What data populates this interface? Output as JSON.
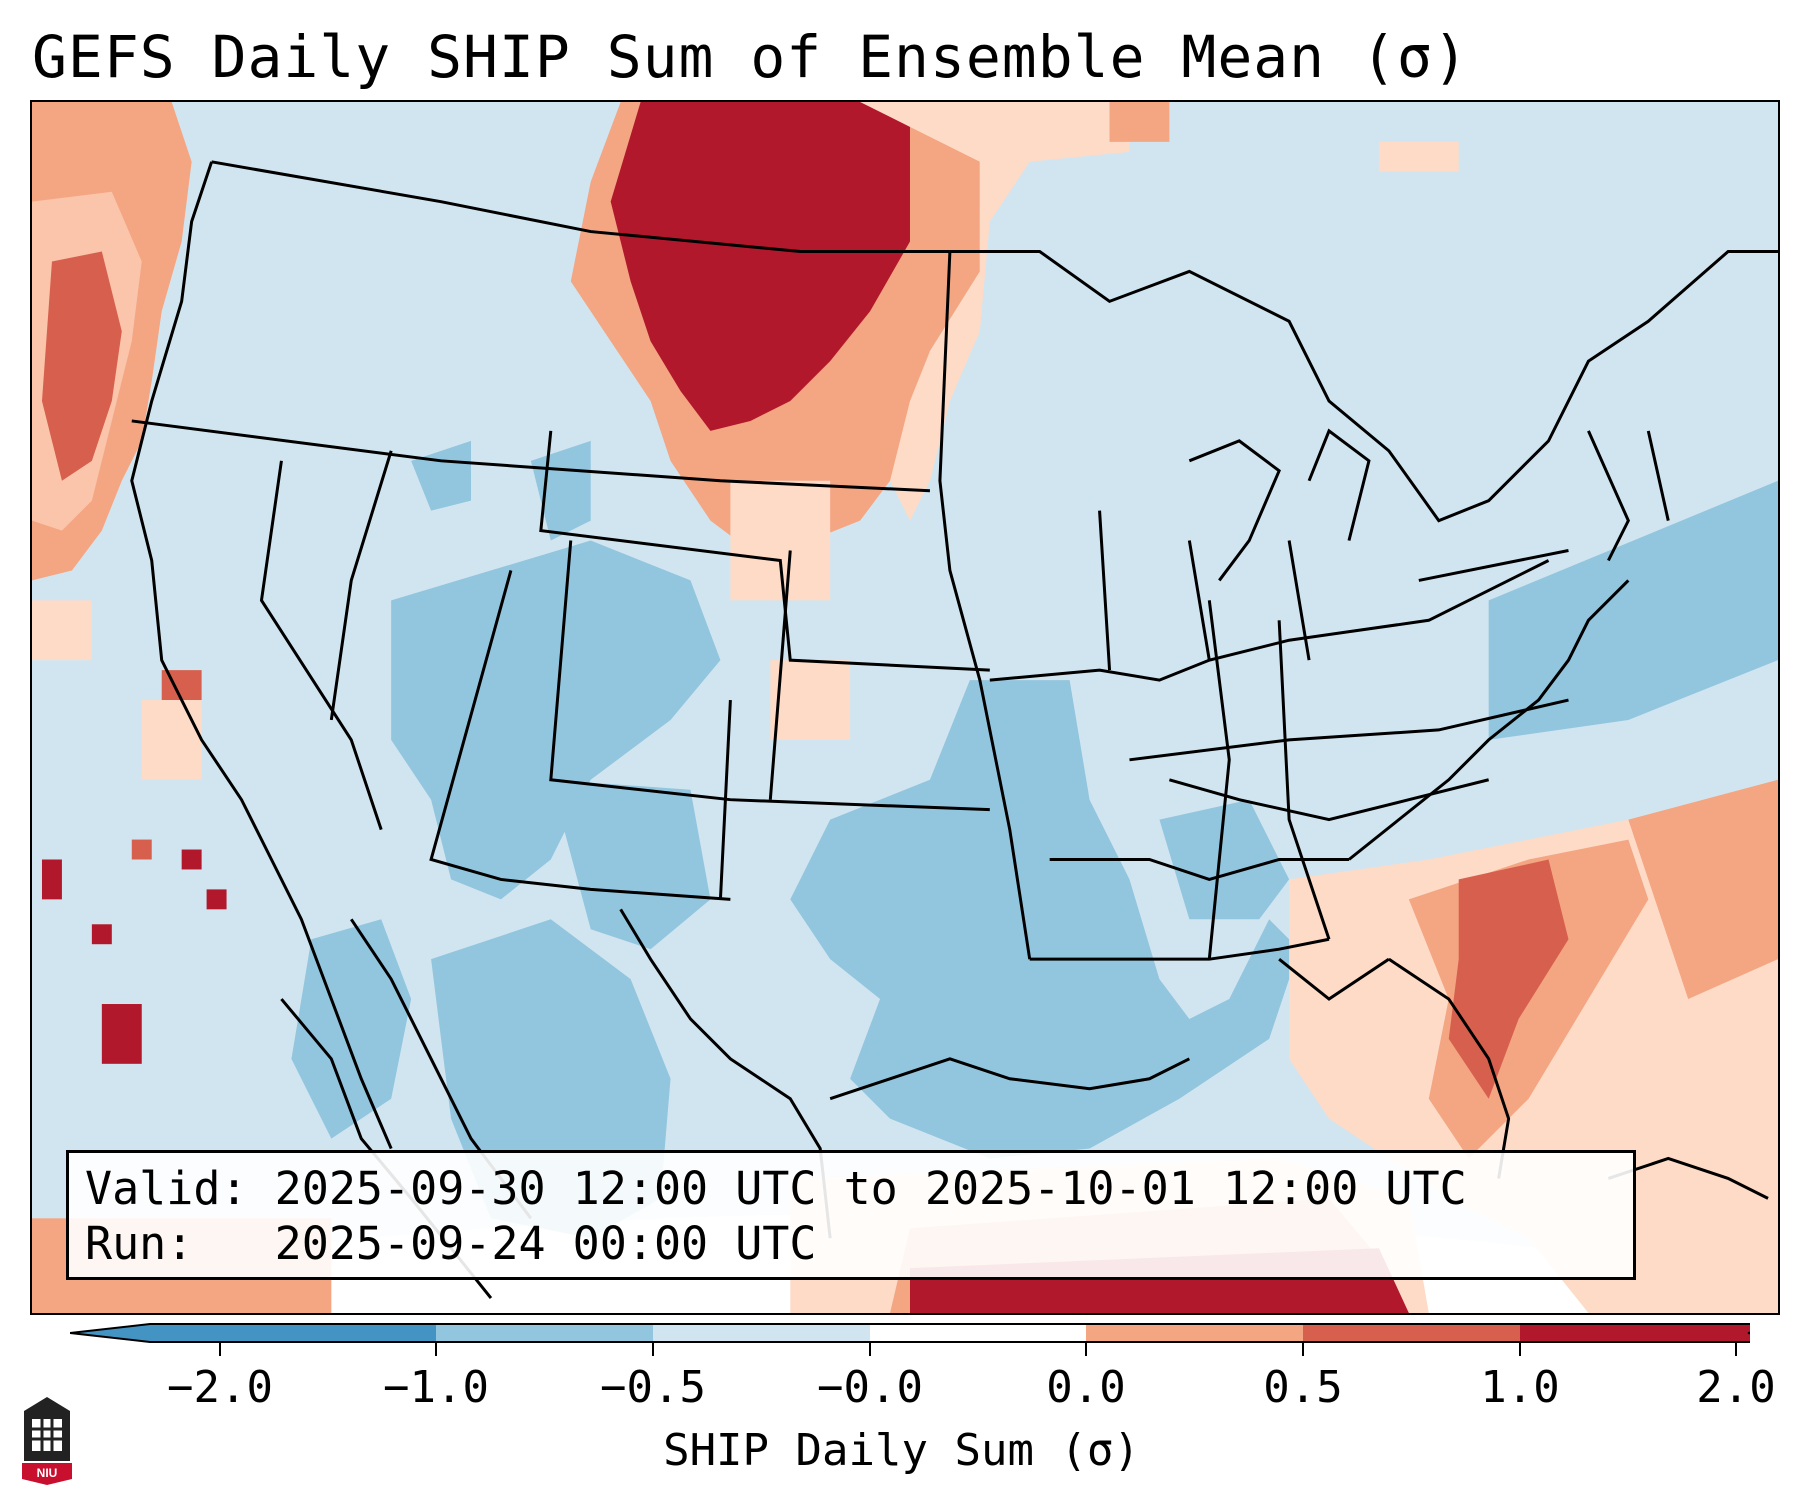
{
  "title": "GEFS Daily SHIP Sum of Ensemble Mean (σ)",
  "info": {
    "valid": "Valid: 2025-09-30 12:00 UTC to 2025-10-01 12:00 UTC",
    "run": "Run:   2025-09-24 00:00 UTC"
  },
  "colorbar": {
    "label": "SHIP Daily Sum (σ)",
    "ticks": [
      "−2.0",
      "−1.0",
      "−0.5",
      "−0.0",
      "0.0",
      "0.5",
      "1.0",
      "2.0"
    ],
    "colors": [
      "#4393c3",
      "#92c5de",
      "#d1e5f0",
      "#ffffff",
      "#fddbc7",
      "#f4a582",
      "#d6604d",
      "#b2182b"
    ],
    "extend": "both"
  },
  "map": {
    "region": "Contiguous United States",
    "projection": "Lambert Conformal"
  },
  "logo": {
    "name": "NIU"
  }
}
